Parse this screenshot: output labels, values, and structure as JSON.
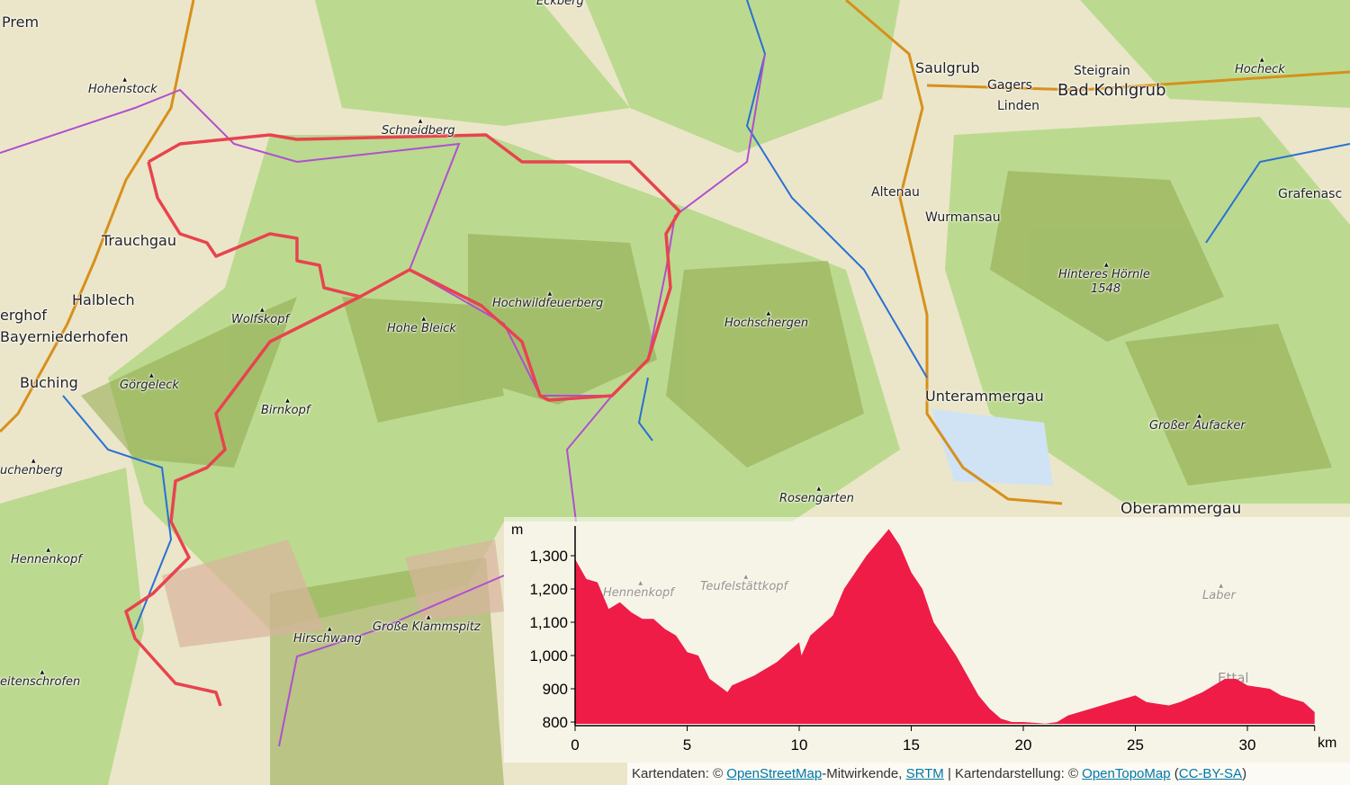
{
  "map": {
    "labels": [
      {
        "text": "Prem",
        "type": "town"
      },
      {
        "text": "Eckberg",
        "type": "peak"
      },
      {
        "text": "Hohenstock",
        "type": "peak"
      },
      {
        "text": "Schneidberg",
        "type": "peak"
      },
      {
        "text": "Saulgrub",
        "type": "town"
      },
      {
        "text": "Steigrain",
        "type": "village"
      },
      {
        "text": "Hocheck",
        "type": "peak"
      },
      {
        "text": "Gagers",
        "type": "village"
      },
      {
        "text": "Bad Kohlgrub",
        "type": "town"
      },
      {
        "text": "Linden",
        "type": "village"
      },
      {
        "text": "Altenau",
        "type": "village"
      },
      {
        "text": "Wurmansau",
        "type": "village"
      },
      {
        "text": "Grafenasc",
        "type": "village"
      },
      {
        "text": "Trauchgau",
        "type": "town"
      },
      {
        "text": "Halblech",
        "type": "town"
      },
      {
        "text": "erghof",
        "type": "village"
      },
      {
        "text": "Bayerniederhofen",
        "type": "town"
      },
      {
        "text": "Buching",
        "type": "town"
      },
      {
        "text": "Wolfskopf",
        "type": "peak"
      },
      {
        "text": "Hohe Bleick",
        "type": "peak"
      },
      {
        "text": "Hochwildfeuerberg",
        "type": "peak"
      },
      {
        "text": "Hochschergen",
        "type": "peak"
      },
      {
        "text": "Hinteres Hörnle",
        "type": "peak"
      },
      {
        "text": "1548",
        "type": "elevation"
      },
      {
        "text": "Görgeleck",
        "type": "peak"
      },
      {
        "text": "Birnkopf",
        "type": "peak"
      },
      {
        "text": "Unterammergau",
        "type": "town"
      },
      {
        "text": "Großer Aufacker",
        "type": "peak"
      },
      {
        "text": "uchenberg",
        "type": "peak"
      },
      {
        "text": "Rosengarten",
        "type": "peak"
      },
      {
        "text": "Oberammergau",
        "type": "town"
      },
      {
        "text": "Hennenkopf",
        "type": "peak"
      },
      {
        "text": "Hirschwang",
        "type": "peak"
      },
      {
        "text": "Große Klammspitz",
        "type": "peak"
      },
      {
        "text": "eitenschrofen",
        "type": "peak"
      },
      {
        "text": "Hennenkopf",
        "type": "peak"
      },
      {
        "text": "Teufelstättkopf",
        "type": "peak"
      },
      {
        "text": "Laber",
        "type": "peak"
      },
      {
        "text": "Ettal",
        "type": "village"
      }
    ],
    "colors": {
      "route": "#e8434f",
      "border": "#b04fd0",
      "water": "#2a6fd6",
      "road": "#d7901c",
      "forest": "#b9d98c"
    }
  },
  "chart_data": {
    "type": "area",
    "title": "",
    "xlabel": "km",
    "ylabel": "m",
    "xlim": [
      0,
      33
    ],
    "ylim": [
      790,
      1390
    ],
    "xticks": [
      0,
      5,
      10,
      15,
      20,
      25,
      30
    ],
    "yticks": [
      800,
      900,
      1000,
      1100,
      1200,
      1300
    ],
    "ytick_labels": [
      "800",
      "900",
      "1,000",
      "1,100",
      "1,200",
      "1,300"
    ],
    "grid": false,
    "color": "#ee1c47",
    "x": [
      0,
      0.5,
      1,
      1.5,
      2,
      2.5,
      3,
      3.5,
      4,
      4.5,
      5,
      5.5,
      6,
      6.8,
      7,
      8,
      9,
      9.5,
      10,
      10.1,
      10.5,
      11,
      11.5,
      12,
      12.5,
      13,
      13.5,
      14,
      14.5,
      15,
      15.5,
      16,
      16.5,
      17,
      17.5,
      18,
      18.5,
      19,
      19.5,
      20,
      21,
      21.5,
      22,
      23,
      24,
      25,
      25.5,
      26,
      26.5,
      27,
      28,
      29,
      29.5,
      30,
      31,
      31.5,
      32,
      32.5,
      33
    ],
    "y": [
      1290,
      1230,
      1220,
      1140,
      1160,
      1130,
      1110,
      1110,
      1080,
      1060,
      1010,
      1000,
      930,
      890,
      910,
      940,
      980,
      1010,
      1040,
      1000,
      1060,
      1090,
      1120,
      1200,
      1250,
      1300,
      1340,
      1380,
      1330,
      1250,
      1200,
      1100,
      1050,
      1000,
      940,
      880,
      840,
      810,
      800,
      800,
      795,
      800,
      820,
      840,
      860,
      880,
      860,
      855,
      850,
      860,
      890,
      930,
      930,
      910,
      900,
      880,
      870,
      860,
      830
    ]
  },
  "attribution": {
    "prefix": "Kartendaten: © ",
    "osm": "OpenStreetMap",
    "mid": "-Mitwirkende, ",
    "srtm": "SRTM",
    "sep": " | Kartendarstellung: © ",
    "otm": "OpenTopoMap",
    "open": " (",
    "license": "CC-BY-SA",
    "close": ")"
  }
}
